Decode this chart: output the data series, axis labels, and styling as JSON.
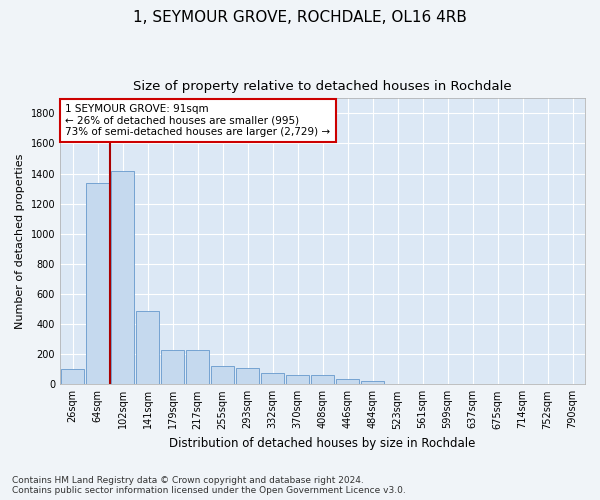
{
  "title": "1, SEYMOUR GROVE, ROCHDALE, OL16 4RB",
  "subtitle": "Size of property relative to detached houses in Rochdale",
  "xlabel": "Distribution of detached houses by size in Rochdale",
  "ylabel": "Number of detached properties",
  "bar_color": "#c5d9ee",
  "bar_edge_color": "#6699cc",
  "background_color": "#dce8f5",
  "grid_color": "#ffffff",
  "fig_bg_color": "#f0f4f8",
  "categories": [
    "26sqm",
    "64sqm",
    "102sqm",
    "141sqm",
    "179sqm",
    "217sqm",
    "255sqm",
    "293sqm",
    "332sqm",
    "370sqm",
    "408sqm",
    "446sqm",
    "484sqm",
    "523sqm",
    "561sqm",
    "599sqm",
    "637sqm",
    "675sqm",
    "714sqm",
    "752sqm",
    "790sqm"
  ],
  "values": [
    100,
    1340,
    1420,
    490,
    230,
    230,
    120,
    110,
    75,
    60,
    60,
    35,
    25,
    0,
    0,
    0,
    0,
    0,
    0,
    0,
    0
  ],
  "red_line_x": 1.5,
  "annotation_text": "1 SEYMOUR GROVE: 91sqm\n← 26% of detached houses are smaller (995)\n73% of semi-detached houses are larger (2,729) →",
  "annotation_box_color": "#ffffff",
  "annotation_box_edge": "#cc0000",
  "vline_color": "#aa0000",
  "ylim": [
    0,
    1900
  ],
  "yticks": [
    0,
    200,
    400,
    600,
    800,
    1000,
    1200,
    1400,
    1600,
    1800
  ],
  "footnote": "Contains HM Land Registry data © Crown copyright and database right 2024.\nContains public sector information licensed under the Open Government Licence v3.0.",
  "title_fontsize": 11,
  "subtitle_fontsize": 9.5,
  "annotation_fontsize": 7.5,
  "tick_fontsize": 7,
  "ylabel_fontsize": 8,
  "xlabel_fontsize": 8.5,
  "footnote_fontsize": 6.5
}
